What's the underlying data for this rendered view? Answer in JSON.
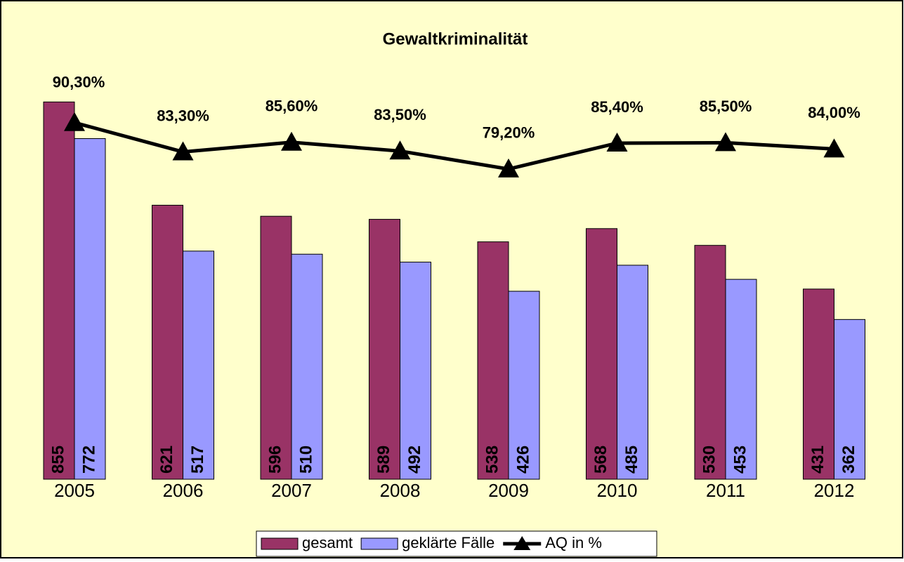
{
  "chart_data": {
    "type": "bar",
    "title": "Gewaltkriminalität",
    "categories": [
      "2005",
      "2006",
      "2007",
      "2008",
      "2009",
      "2010",
      "2011",
      "2012"
    ],
    "series": [
      {
        "name": "gesamt",
        "color": "#993366",
        "values": [
          855,
          621,
          596,
          589,
          538,
          568,
          530,
          431
        ]
      },
      {
        "name": "geklärte Fälle",
        "color": "#9999FF",
        "values": [
          772,
          517,
          510,
          492,
          426,
          485,
          453,
          362
        ]
      },
      {
        "name": "AQ in %",
        "color": "#000000",
        "type": "line",
        "axis": "y2",
        "values": [
          90.3,
          83.3,
          85.6,
          83.5,
          79.2,
          85.4,
          85.5,
          84.0
        ],
        "value_labels": [
          "90,30%",
          "83,30%",
          "85,60%",
          "83,50%",
          "79,20%",
          "85,40%",
          "85,50%",
          "84,00%"
        ]
      }
    ],
    "ylim": [
      0,
      900
    ],
    "y2lim": [
      5,
      100
    ],
    "legend": "bottom"
  }
}
